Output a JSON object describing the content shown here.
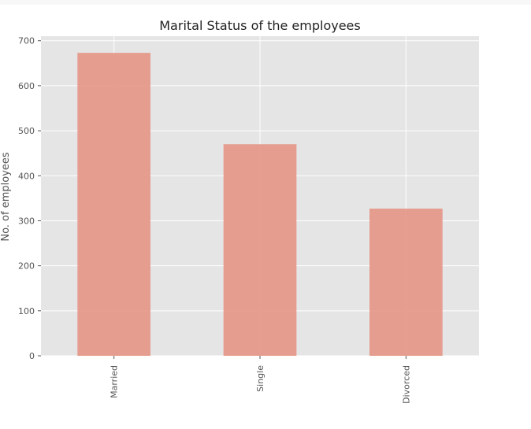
{
  "chart_data": {
    "type": "bar",
    "title": "Marital Status of the employees",
    "xlabel": "",
    "ylabel": "No. of employees",
    "categories": [
      "Married",
      "Single",
      "Divorced"
    ],
    "values": [
      673,
      470,
      327
    ],
    "ylim": [
      0,
      710
    ],
    "yticks": [
      0,
      100,
      200,
      300,
      400,
      500,
      600,
      700
    ],
    "grid": true,
    "legend": "none",
    "colors": {
      "bar": "#e5998a",
      "plot_background": "#e5e5e5",
      "grid": "#ffffff"
    }
  }
}
